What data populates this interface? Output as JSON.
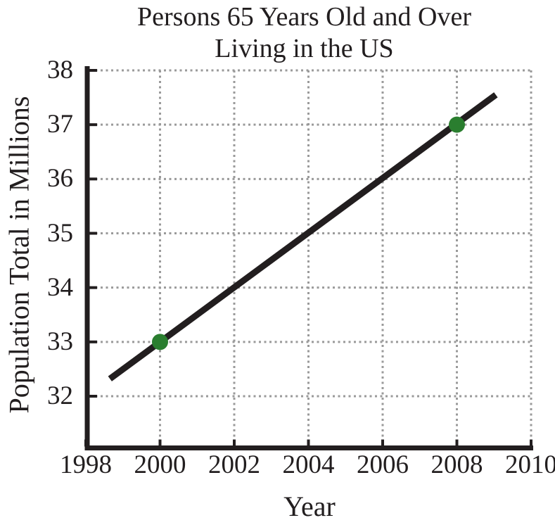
{
  "chart_data": {
    "type": "line",
    "title": "Persons 65 Years Old and Over Living in the US",
    "title_line1": "Persons 65 Years Old and Over",
    "title_line2": "Living in the US",
    "xlabel": "Year",
    "ylabel": "Population Total in Millions",
    "x_ticks": [
      1998,
      2000,
      2002,
      2004,
      2006,
      2008,
      2010
    ],
    "y_ticks": [
      38,
      37,
      36,
      35,
      34,
      33,
      32
    ],
    "xlim": [
      1998,
      2010
    ],
    "ylim": [
      31,
      38
    ],
    "grid": "dotted",
    "legend": "none",
    "series": [
      {
        "name": "population-trend-line",
        "start": {
          "x": 1998.65,
          "y": 32.32
        },
        "end": {
          "x": 2009.05,
          "y": 37.55
        },
        "slope_per_year": 0.5,
        "color": "#221e1f"
      }
    ],
    "points": [
      {
        "x": 2000,
        "y": 33
      },
      {
        "x": 2008,
        "y": 37
      }
    ],
    "point_color": "#2a7e2f",
    "axis_color": "#221e1f",
    "grid_color": "#9a9a9a"
  }
}
